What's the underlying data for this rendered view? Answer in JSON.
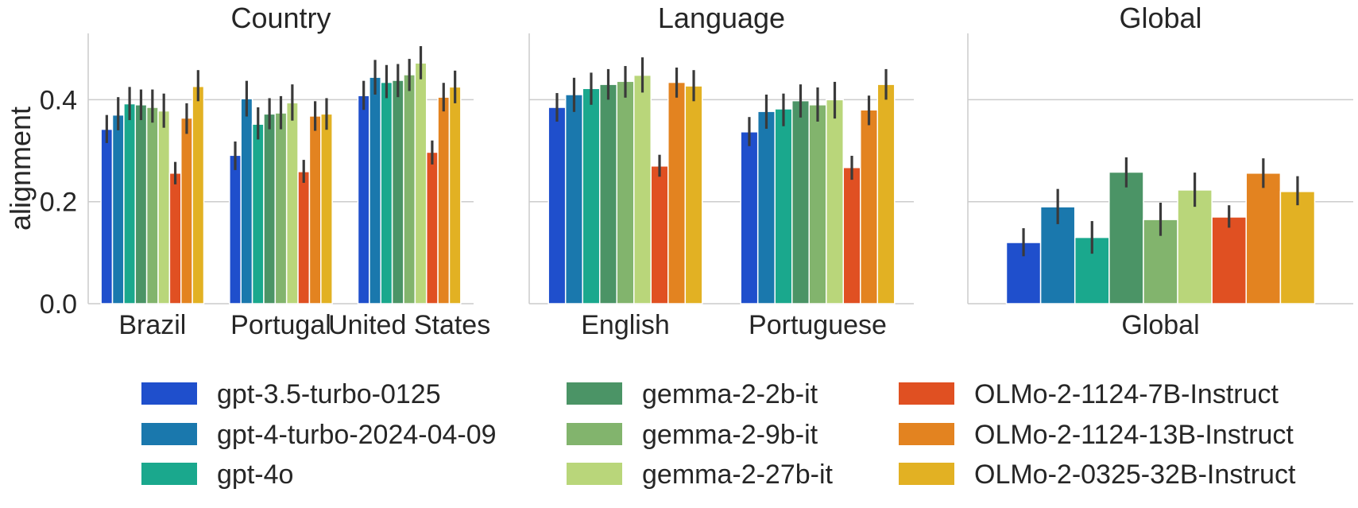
{
  "chart_data": {
    "type": "bar",
    "ylabel": "alignment",
    "ylim": [
      0,
      0.53
    ],
    "yticks": [
      0.0,
      0.2,
      0.4
    ],
    "ytick_labels": [
      "0.0",
      "0.2",
      "0.4"
    ],
    "grid": true,
    "legend_position": "bottom",
    "series": [
      {
        "name": "gpt-3.5-turbo-0125",
        "color": "#1f4fcc"
      },
      {
        "name": "gpt-4-turbo-2024-04-09",
        "color": "#1a78ad"
      },
      {
        "name": "gpt-4o",
        "color": "#1aa88d"
      },
      {
        "name": "gemma-2-2b-it",
        "color": "#4b9466"
      },
      {
        "name": "gemma-2-9b-it",
        "color": "#82b46d"
      },
      {
        "name": "gemma-2-27b-it",
        "color": "#b9d67a"
      },
      {
        "name": "OLMo-2-1124-7B-Instruct",
        "color": "#e05022"
      },
      {
        "name": "OLMo-2-1124-13B-Instruct",
        "color": "#e38320"
      },
      {
        "name": "OLMo-2-0325-32B-Instruct",
        "color": "#e2b123"
      }
    ],
    "panels": [
      {
        "title": "Country",
        "categories": [
          "Brazil",
          "Portugal",
          "United States"
        ],
        "values": [
          [
            0.342,
            0.37,
            0.392,
            0.39,
            0.385,
            0.378,
            0.256,
            0.364,
            0.426
          ],
          [
            0.291,
            0.402,
            0.352,
            0.372,
            0.374,
            0.394,
            0.259,
            0.368,
            0.372
          ],
          [
            0.408,
            0.444,
            0.434,
            0.438,
            0.449,
            0.472,
            0.297,
            0.405,
            0.425
          ]
        ],
        "errors": [
          [
            [
              0.315,
              0.37
            ],
            [
              0.34,
              0.405
            ],
            [
              0.36,
              0.425
            ],
            [
              0.36,
              0.42
            ],
            [
              0.355,
              0.42
            ],
            [
              0.345,
              0.412
            ],
            [
              0.234,
              0.278
            ],
            [
              0.333,
              0.393
            ],
            [
              0.397,
              0.458
            ]
          ],
          [
            [
              0.262,
              0.318
            ],
            [
              0.367,
              0.437
            ],
            [
              0.322,
              0.385
            ],
            [
              0.342,
              0.403
            ],
            [
              0.342,
              0.407
            ],
            [
              0.359,
              0.43
            ],
            [
              0.237,
              0.282
            ],
            [
              0.339,
              0.397
            ],
            [
              0.341,
              0.403
            ]
          ],
          [
            [
              0.38,
              0.437
            ],
            [
              0.41,
              0.478
            ],
            [
              0.403,
              0.468
            ],
            [
              0.405,
              0.47
            ],
            [
              0.417,
              0.48
            ],
            [
              0.44,
              0.505
            ],
            [
              0.273,
              0.32
            ],
            [
              0.377,
              0.433
            ],
            [
              0.393,
              0.457
            ]
          ]
        ]
      },
      {
        "title": "Language",
        "categories": [
          "English",
          "Portuguese"
        ],
        "values": [
          [
            0.385,
            0.41,
            0.422,
            0.43,
            0.436,
            0.448,
            0.27,
            0.434,
            0.427
          ],
          [
            0.337,
            0.377,
            0.382,
            0.398,
            0.39,
            0.4,
            0.267,
            0.38,
            0.43
          ]
        ],
        "errors": [
          [
            [
              0.357,
              0.413
            ],
            [
              0.376,
              0.443
            ],
            [
              0.39,
              0.453
            ],
            [
              0.4,
              0.46
            ],
            [
              0.404,
              0.466
            ],
            [
              0.414,
              0.483
            ],
            [
              0.249,
              0.292
            ],
            [
              0.404,
              0.463
            ],
            [
              0.397,
              0.458
            ]
          ],
          [
            [
              0.309,
              0.366
            ],
            [
              0.343,
              0.41
            ],
            [
              0.348,
              0.412
            ],
            [
              0.365,
              0.43
            ],
            [
              0.357,
              0.424
            ],
            [
              0.363,
              0.435
            ],
            [
              0.243,
              0.29
            ],
            [
              0.35,
              0.408
            ],
            [
              0.4,
              0.46
            ]
          ]
        ]
      },
      {
        "title": "Global",
        "categories": [
          "Global"
        ],
        "values": [
          [
            0.12,
            0.19,
            0.13,
            0.258,
            0.165,
            0.223,
            0.17,
            0.256,
            0.22
          ]
        ],
        "errors": [
          [
            [
              0.093,
              0.148
            ],
            [
              0.156,
              0.225
            ],
            [
              0.098,
              0.162
            ],
            [
              0.228,
              0.287
            ],
            [
              0.133,
              0.198
            ],
            [
              0.19,
              0.257
            ],
            [
              0.149,
              0.193
            ],
            [
              0.227,
              0.285
            ],
            [
              0.193,
              0.25
            ]
          ]
        ]
      }
    ]
  }
}
